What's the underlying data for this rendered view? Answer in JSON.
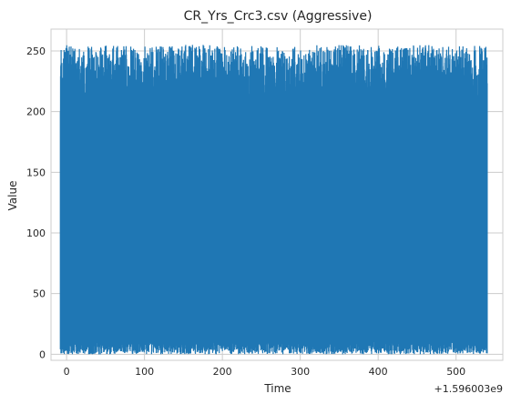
{
  "chart_data": {
    "type": "line",
    "title": "CR_Yrs_Crc3.csv (Aggressive)",
    "xlabel": "Time",
    "ylabel": "Value",
    "x_offset_label": "+1.596003e9",
    "xlim": [
      -20,
      560
    ],
    "ylim": [
      -5,
      268
    ],
    "xticks": [
      0,
      100,
      200,
      300,
      400,
      500
    ],
    "yticks": [
      0,
      50,
      100,
      150,
      200,
      250
    ],
    "x_range": [
      -8,
      540
    ],
    "value_range": [
      0,
      255
    ],
    "grid": true,
    "color": "#1f77b4",
    "series": [
      {
        "x": [
          -8,
          0,
          50,
          100,
          150,
          200,
          250,
          300,
          350,
          400,
          450,
          500,
          540
        ],
        "y_min": [
          0,
          0,
          1,
          0,
          0,
          1,
          0,
          0,
          1,
          0,
          0,
          1,
          0
        ],
        "y_max": [
          254,
          255,
          254,
          255,
          254,
          255,
          255,
          254,
          255,
          254,
          255,
          254,
          254
        ]
      }
    ]
  }
}
